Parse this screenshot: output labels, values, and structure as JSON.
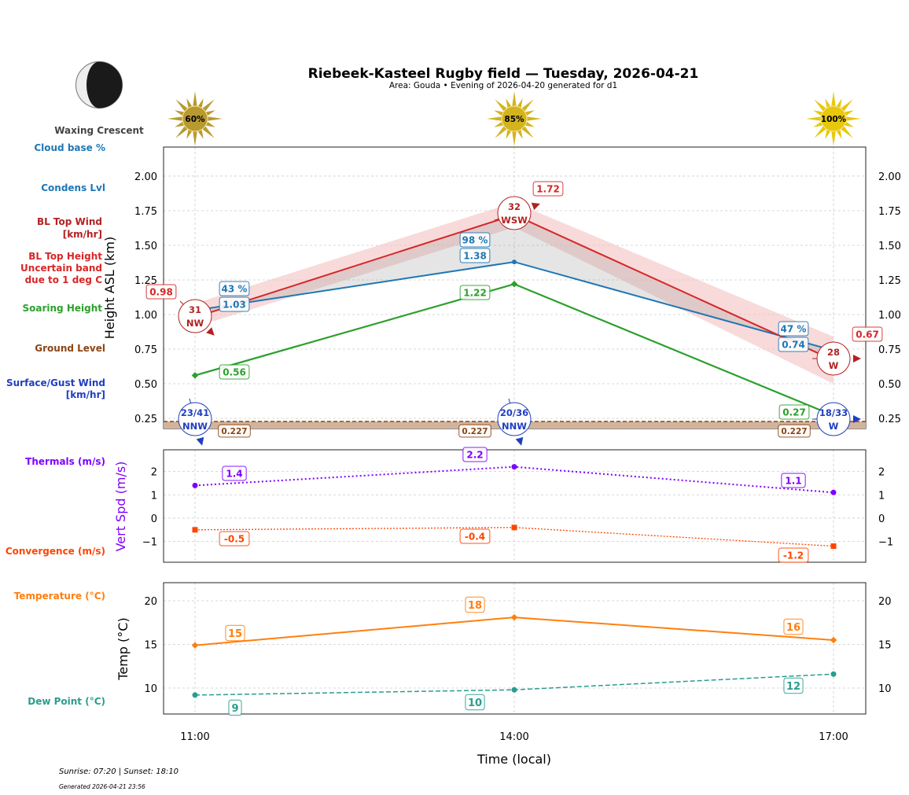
{
  "chart_data": {
    "title": "Riebeek-Kasteel Rugby field — Tuesday, 2026-04-21",
    "subtitle": "Area: Gouda • Evening of 2026-04-20 generated for d1",
    "xlabel": "Time (local)",
    "x": [
      "11:00",
      "14:00",
      "17:00"
    ],
    "moon_phase": "Waxing Crescent",
    "sun_percent": [
      60,
      85,
      100
    ],
    "footer": {
      "sun": "Sunrise: 07:20 | Sunset: 18:10",
      "generated": "Generated 2026-04-21 23:56"
    },
    "left_labels": {
      "cloud_base": "Cloud base %",
      "condens": "Condens Lvl",
      "bl_wind": [
        "BL Top Wind",
        "[km/hr]"
      ],
      "bl_top": [
        "BL Top Height",
        "Uncertain band",
        "due to 1 deg C"
      ],
      "soaring": "Soaring Height",
      "ground": "Ground Level",
      "surface_wind": [
        "Surface/Gust Wind",
        "[km/hr]"
      ],
      "thermals": "Thermals (m/s)",
      "convergence": "Convergence (m/s)",
      "temperature": "Temperature (°C)",
      "dew_point": "Dew Point (°C)"
    },
    "panels": [
      {
        "type": "line",
        "ylabel": "Height ASL (km)",
        "ylim": [
          0.176,
          2.21
        ],
        "yticks": [
          0.25,
          0.5,
          0.75,
          1.0,
          1.25,
          1.5,
          1.75,
          2.0
        ],
        "grid": true,
        "series": {
          "condens_lvl": [
            1.03,
            1.38,
            0.74
          ],
          "cloud_base_pct": [
            43,
            98,
            47
          ],
          "bl_top": [
            0.98,
            1.72,
            0.67
          ],
          "bl_top_band_low": [
            0.91,
            1.63,
            0.5
          ],
          "bl_top_band_high": [
            1.08,
            1.81,
            0.84
          ],
          "soaring": [
            0.56,
            1.22,
            0.27
          ],
          "ground": [
            0.227,
            0.227,
            0.227
          ],
          "bl_wind_speed": [
            31,
            32,
            28
          ],
          "bl_wind_dir": [
            "NW",
            "WSW",
            "W"
          ],
          "surface_wind": [
            "23/41",
            "20/36",
            "18/33"
          ],
          "surface_wind_dir": [
            "NNW",
            "NNW",
            "W"
          ]
        }
      },
      {
        "type": "line",
        "ylabel": "Vert Spd (m/s)",
        "ylim": [
          -1.89,
          2.93
        ],
        "yticks": [
          -1,
          0,
          1,
          2
        ],
        "grid": true,
        "series": {
          "thermals": [
            1.4,
            2.2,
            1.1
          ],
          "convergence": [
            -0.5,
            -0.4,
            -1.2
          ]
        }
      },
      {
        "type": "line",
        "ylabel": "Temp (°C)",
        "ylim": [
          7.03,
          22.07
        ],
        "yticks": [
          10,
          15,
          20
        ],
        "grid": true,
        "series": {
          "temperature": [
            14.9,
            18.1,
            15.5
          ],
          "temperature_labels": [
            "15",
            "18",
            "16"
          ],
          "dew_point": [
            9.2,
            9.8,
            11.6
          ],
          "dew_point_labels": [
            "9",
            "10",
            "12"
          ]
        }
      }
    ],
    "colors": {
      "condens": "#1f77b4",
      "bl_top": "#d62728",
      "band": "#f4c2c2",
      "soaring": "#2ca02c",
      "ground": "#8b4513",
      "bl_wind": "#b22222",
      "surface_wind": "#1f3fbf",
      "thermals": "#7f00ff",
      "convergence": "#ff4500",
      "temperature": "#ff7f0e",
      "dew_point": "#2a9d8f"
    }
  }
}
